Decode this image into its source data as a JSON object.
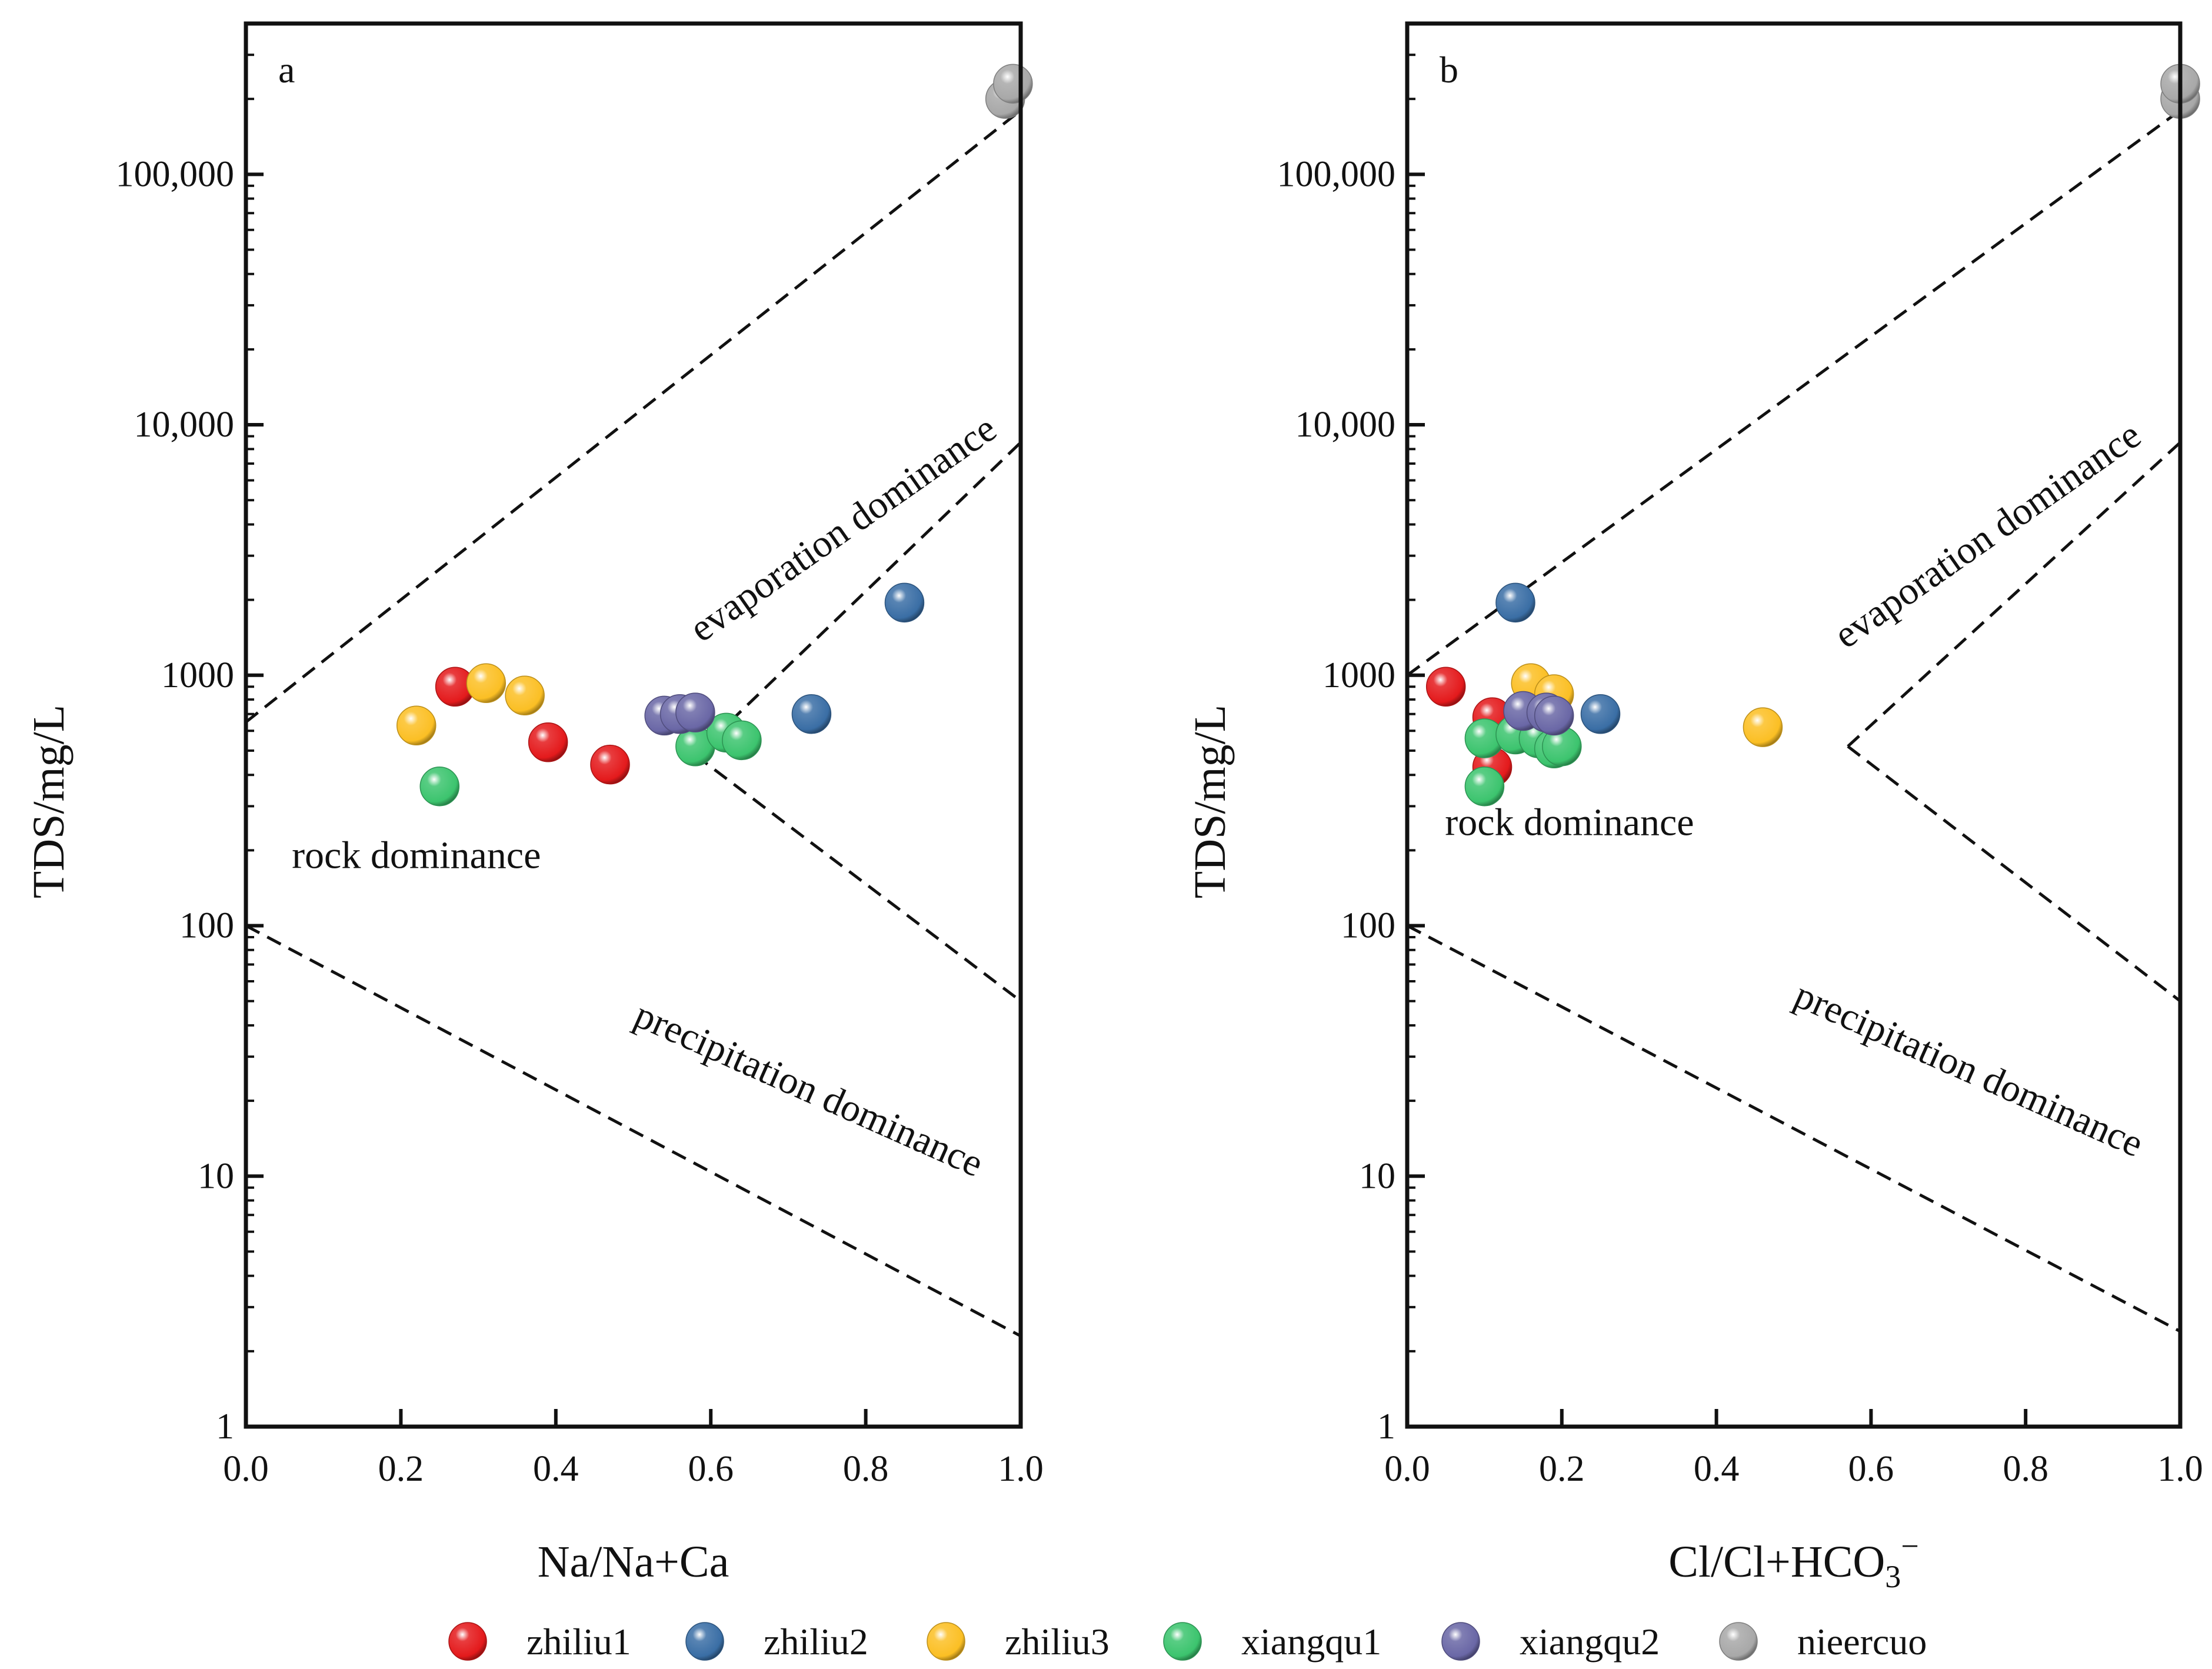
{
  "chart_data": [
    {
      "type": "scatter",
      "panel_label": "a",
      "xlabel": "Na/Na+Ca",
      "xlabel_sub": "",
      "xlabel_sup": "",
      "ylabel": "TDS/mg/L",
      "yscale": "log",
      "xlim": [
        0,
        1
      ],
      "ylim": [
        1,
        400000
      ],
      "xticks": [
        0,
        0.2,
        0.4,
        0.6,
        0.8,
        1.0
      ],
      "xtick_labels": [
        "0.0",
        "0.2",
        "0.4",
        "0.6",
        "0.8",
        "1.0"
      ],
      "yticks": [
        1,
        10,
        100,
        1000,
        10000,
        100000
      ],
      "ytick_labels": [
        "1",
        "10",
        "100",
        "1000",
        "10,000",
        "100,000"
      ],
      "boundaries": [
        {
          "name": "upper",
          "points": [
            [
              0,
              650
            ],
            [
              1,
              180000
            ]
          ]
        },
        {
          "name": "lower",
          "points": [
            [
              0,
              100
            ],
            [
              1,
              2.3
            ]
          ]
        },
        {
          "name": "inner-upper",
          "points": [
            [
              0.58,
              480
            ],
            [
              1,
              8500
            ]
          ]
        },
        {
          "name": "inner-lower",
          "points": [
            [
              0.58,
              480
            ],
            [
              1,
              50
            ]
          ]
        }
      ],
      "annotations": [
        {
          "text": "evaporation dominance",
          "x": 0.78,
          "y": 3500,
          "rotate": -35
        },
        {
          "text": "rock dominance",
          "x": 0.22,
          "y": 170,
          "rotate": 0
        },
        {
          "text": "precipitation dominance",
          "x": 0.72,
          "y": 20,
          "rotate": 24
        }
      ],
      "series": [
        {
          "name": "zhiliu1",
          "points": [
            [
              0.27,
              900
            ],
            [
              0.39,
              540
            ],
            [
              0.47,
              440
            ]
          ]
        },
        {
          "name": "zhiliu2",
          "points": [
            [
              0.85,
              1950
            ],
            [
              0.73,
              700
            ]
          ]
        },
        {
          "name": "zhiliu3",
          "points": [
            [
              0.22,
              630
            ],
            [
              0.31,
              930
            ],
            [
              0.36,
              830
            ]
          ]
        },
        {
          "name": "xiangqu1",
          "points": [
            [
              0.25,
              360
            ],
            [
              0.58,
              520
            ],
            [
              0.62,
              590
            ],
            [
              0.64,
              550
            ]
          ]
        },
        {
          "name": "xiangqu2",
          "points": [
            [
              0.54,
              690
            ],
            [
              0.56,
              700
            ],
            [
              0.58,
              710
            ]
          ]
        },
        {
          "name": "nieercuo",
          "points": [
            [
              0.98,
              200000
            ],
            [
              0.99,
              230000
            ]
          ]
        }
      ]
    },
    {
      "type": "scatter",
      "panel_label": "b",
      "xlabel": "Cl/Cl+HCO",
      "xlabel_sub": "3",
      "xlabel_sup": "−",
      "ylabel": "TDS/mg/L",
      "yscale": "log",
      "xlim": [
        0,
        1
      ],
      "ylim": [
        1,
        400000
      ],
      "xticks": [
        0,
        0.2,
        0.4,
        0.6,
        0.8,
        1.0
      ],
      "xtick_labels": [
        "0.0",
        "0.2",
        "0.4",
        "0.6",
        "0.8",
        "1.0"
      ],
      "yticks": [
        1,
        10,
        100,
        1000,
        10000,
        100000
      ],
      "ytick_labels": [
        "1",
        "10",
        "100",
        "1000",
        "10,000",
        "100,000"
      ],
      "boundaries": [
        {
          "name": "upper",
          "points": [
            [
              0,
              1000
            ],
            [
              1,
              180000
            ]
          ]
        },
        {
          "name": "lower",
          "points": [
            [
              0,
              100
            ],
            [
              1,
              2.4
            ]
          ]
        },
        {
          "name": "inner-upper",
          "points": [
            [
              0.57,
              520
            ],
            [
              1,
              8500
            ]
          ]
        },
        {
          "name": "inner-lower",
          "points": [
            [
              0.57,
              520
            ],
            [
              1,
              50
            ]
          ]
        }
      ],
      "annotations": [
        {
          "text": "evaporation dominance",
          "x": 0.76,
          "y": 3300,
          "rotate": -35
        },
        {
          "text": "rock dominance",
          "x": 0.21,
          "y": 230,
          "rotate": 0
        },
        {
          "text": "precipitation dominance",
          "x": 0.72,
          "y": 24,
          "rotate": 24
        }
      ],
      "series": [
        {
          "name": "zhiliu1",
          "points": [
            [
              0.05,
              900
            ],
            [
              0.11,
              680
            ],
            [
              0.11,
              430
            ]
          ]
        },
        {
          "name": "zhiliu2",
          "points": [
            [
              0.14,
              1950
            ],
            [
              0.25,
              700
            ]
          ]
        },
        {
          "name": "zhiliu3",
          "points": [
            [
              0.16,
              930
            ],
            [
              0.19,
              840
            ],
            [
              0.46,
              620
            ]
          ]
        },
        {
          "name": "xiangqu1",
          "points": [
            [
              0.1,
              360
            ],
            [
              0.1,
              560
            ],
            [
              0.14,
              580
            ],
            [
              0.17,
              560
            ],
            [
              0.19,
              510
            ],
            [
              0.2,
              520
            ]
          ]
        },
        {
          "name": "xiangqu2",
          "points": [
            [
              0.15,
              720
            ],
            [
              0.18,
              710
            ],
            [
              0.19,
              690
            ]
          ]
        },
        {
          "name": "nieercuo",
          "points": [
            [
              1.0,
              200000
            ],
            [
              1.0,
              230000
            ]
          ]
        }
      ]
    }
  ],
  "legend": [
    {
      "name": "zhiliu1",
      "color": "#e41a1c"
    },
    {
      "name": "zhiliu2",
      "color": "#3a6ea5"
    },
    {
      "name": "zhiliu3",
      "color": "#fbbf24"
    },
    {
      "name": "xiangqu1",
      "color": "#3cc46e"
    },
    {
      "name": "xiangqu2",
      "color": "#6a67a6"
    },
    {
      "name": "nieercuo",
      "color": "#a8a8a8"
    }
  ]
}
